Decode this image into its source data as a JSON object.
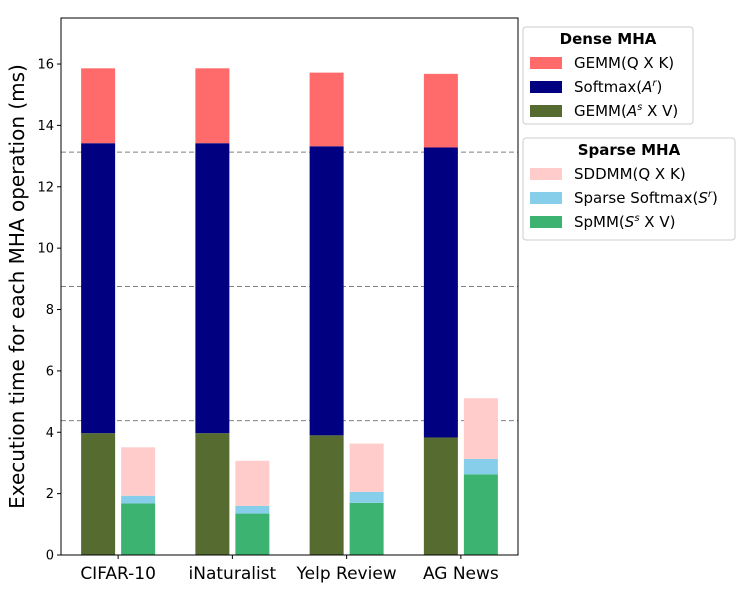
{
  "chart_data": {
    "type": "bar",
    "stacked": true,
    "grouped": true,
    "categories": [
      "CIFAR-10",
      "iNaturalist",
      "Yelp Review",
      "AG News"
    ],
    "ylabel": "Execution time for each MHA operation (ms)",
    "xlabel": "",
    "ylim": [
      0,
      17.5
    ],
    "yticks": [
      0,
      2,
      4,
      6,
      8,
      10,
      12,
      14,
      16
    ],
    "reference_lines": [
      4.38,
      8.75,
      13.13,
      17.5
    ],
    "groups": [
      {
        "name": "Dense MHA",
        "series": [
          {
            "name": "GEMM(A^s X V)",
            "color": "#556b2f",
            "values": [
              3.97,
              3.97,
              3.9,
              3.83
            ]
          },
          {
            "name": "Softmax(A^r)",
            "color": "#000080",
            "values": [
              9.45,
              9.45,
              9.42,
              9.45
            ]
          },
          {
            "name": "GEMM(Q X K)",
            "color": "#ff6a6a",
            "values": [
              2.44,
              2.44,
              2.4,
              2.4
            ]
          }
        ]
      },
      {
        "name": "Sparse MHA",
        "series": [
          {
            "name": "SpMM(S^s X V)",
            "color": "#3cb371",
            "values": [
              1.68,
              1.35,
              1.7,
              2.63
            ]
          },
          {
            "name": "Sparse Softmax(S^r)",
            "color": "#87ceeb",
            "values": [
              0.25,
              0.25,
              0.36,
              0.5
            ]
          },
          {
            "name": "SDDMM(Q X K)",
            "color": "#ffcccb",
            "values": [
              1.58,
              1.47,
              1.57,
              1.98
            ]
          }
        ]
      }
    ],
    "legend": [
      {
        "title": "Dense MHA",
        "entries": [
          {
            "label": "GEMM(Q X K)",
            "color": "#ff6a6a"
          },
          {
            "label": "Softmax(",
            "sym": "A",
            "sup": "r",
            "tail": ")",
            "color": "#000080"
          },
          {
            "label": "GEMM(",
            "sym": "A",
            "sup": "s",
            "tail": " X V)",
            "color": "#556b2f"
          }
        ]
      },
      {
        "title": "Sparse MHA",
        "entries": [
          {
            "label": "SDDMM(Q X K)",
            "color": "#ffcccb"
          },
          {
            "label": "Sparse Softmax(",
            "sym": "S",
            "sup": "r",
            "tail": ")",
            "color": "#87ceeb"
          },
          {
            "label": "SpMM(",
            "sym": "S",
            "sup": "s",
            "tail": " X V)",
            "color": "#3cb371"
          }
        ]
      }
    ],
    "legend_position": "upper right, outside plot"
  }
}
